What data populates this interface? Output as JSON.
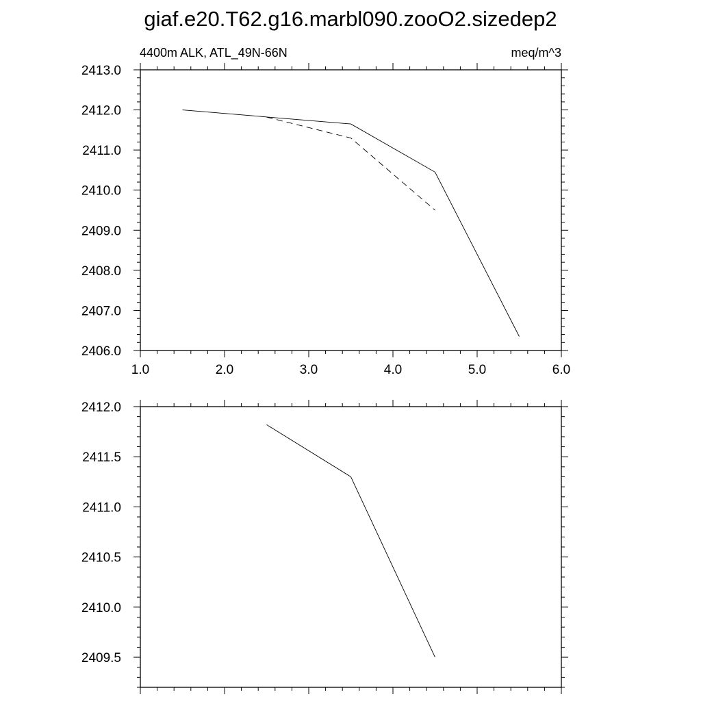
{
  "figure": {
    "title": "giaf.e20.T62.g16.marbl090.zooO2.sizedep2"
  },
  "chart_data": [
    {
      "type": "line",
      "left_label": "4400m ALK, ATL_49N-66N",
      "right_label": "meq/m^3",
      "xlim": [
        1.0,
        6.0
      ],
      "ylim": [
        2406.0,
        2413.0
      ],
      "x_ticks": [
        1.0,
        2.0,
        3.0,
        4.0,
        5.0,
        6.0
      ],
      "x_tick_labels": [
        "1.0",
        "2.0",
        "3.0",
        "4.0",
        "5.0",
        "6.0"
      ],
      "y_ticks": [
        2406.0,
        2407.0,
        2408.0,
        2409.0,
        2410.0,
        2411.0,
        2412.0,
        2413.0
      ],
      "y_tick_labels": [
        "2406.0",
        "2407.0",
        "2408.0",
        "2409.0",
        "2410.0",
        "2411.0",
        "2412.0",
        "2413.0"
      ],
      "grid": false,
      "series": [
        {
          "style": "solid",
          "x": [
            1.5,
            3.5,
            4.5,
            5.5
          ],
          "y": [
            2412.0,
            2411.65,
            2410.45,
            2406.35
          ]
        },
        {
          "style": "dashed",
          "x": [
            2.5,
            3.5,
            4.5
          ],
          "y": [
            2411.82,
            2411.3,
            2409.5
          ]
        }
      ]
    },
    {
      "type": "line",
      "xlim": [
        1.0,
        6.0
      ],
      "ylim": [
        2409.2,
        2412.0
      ],
      "x_ticks": [
        1.0,
        2.0,
        3.0,
        4.0,
        5.0,
        6.0
      ],
      "x_tick_labels": [],
      "y_ticks": [
        2409.5,
        2410.0,
        2410.5,
        2411.0,
        2411.5,
        2412.0
      ],
      "y_tick_labels": [
        "2409.5",
        "2410.0",
        "2410.5",
        "2411.0",
        "2411.5",
        "2412.0"
      ],
      "grid": false,
      "series": [
        {
          "style": "solid",
          "x": [
            2.5,
            3.5,
            4.5
          ],
          "y": [
            2411.82,
            2411.3,
            2409.5
          ]
        }
      ]
    }
  ]
}
